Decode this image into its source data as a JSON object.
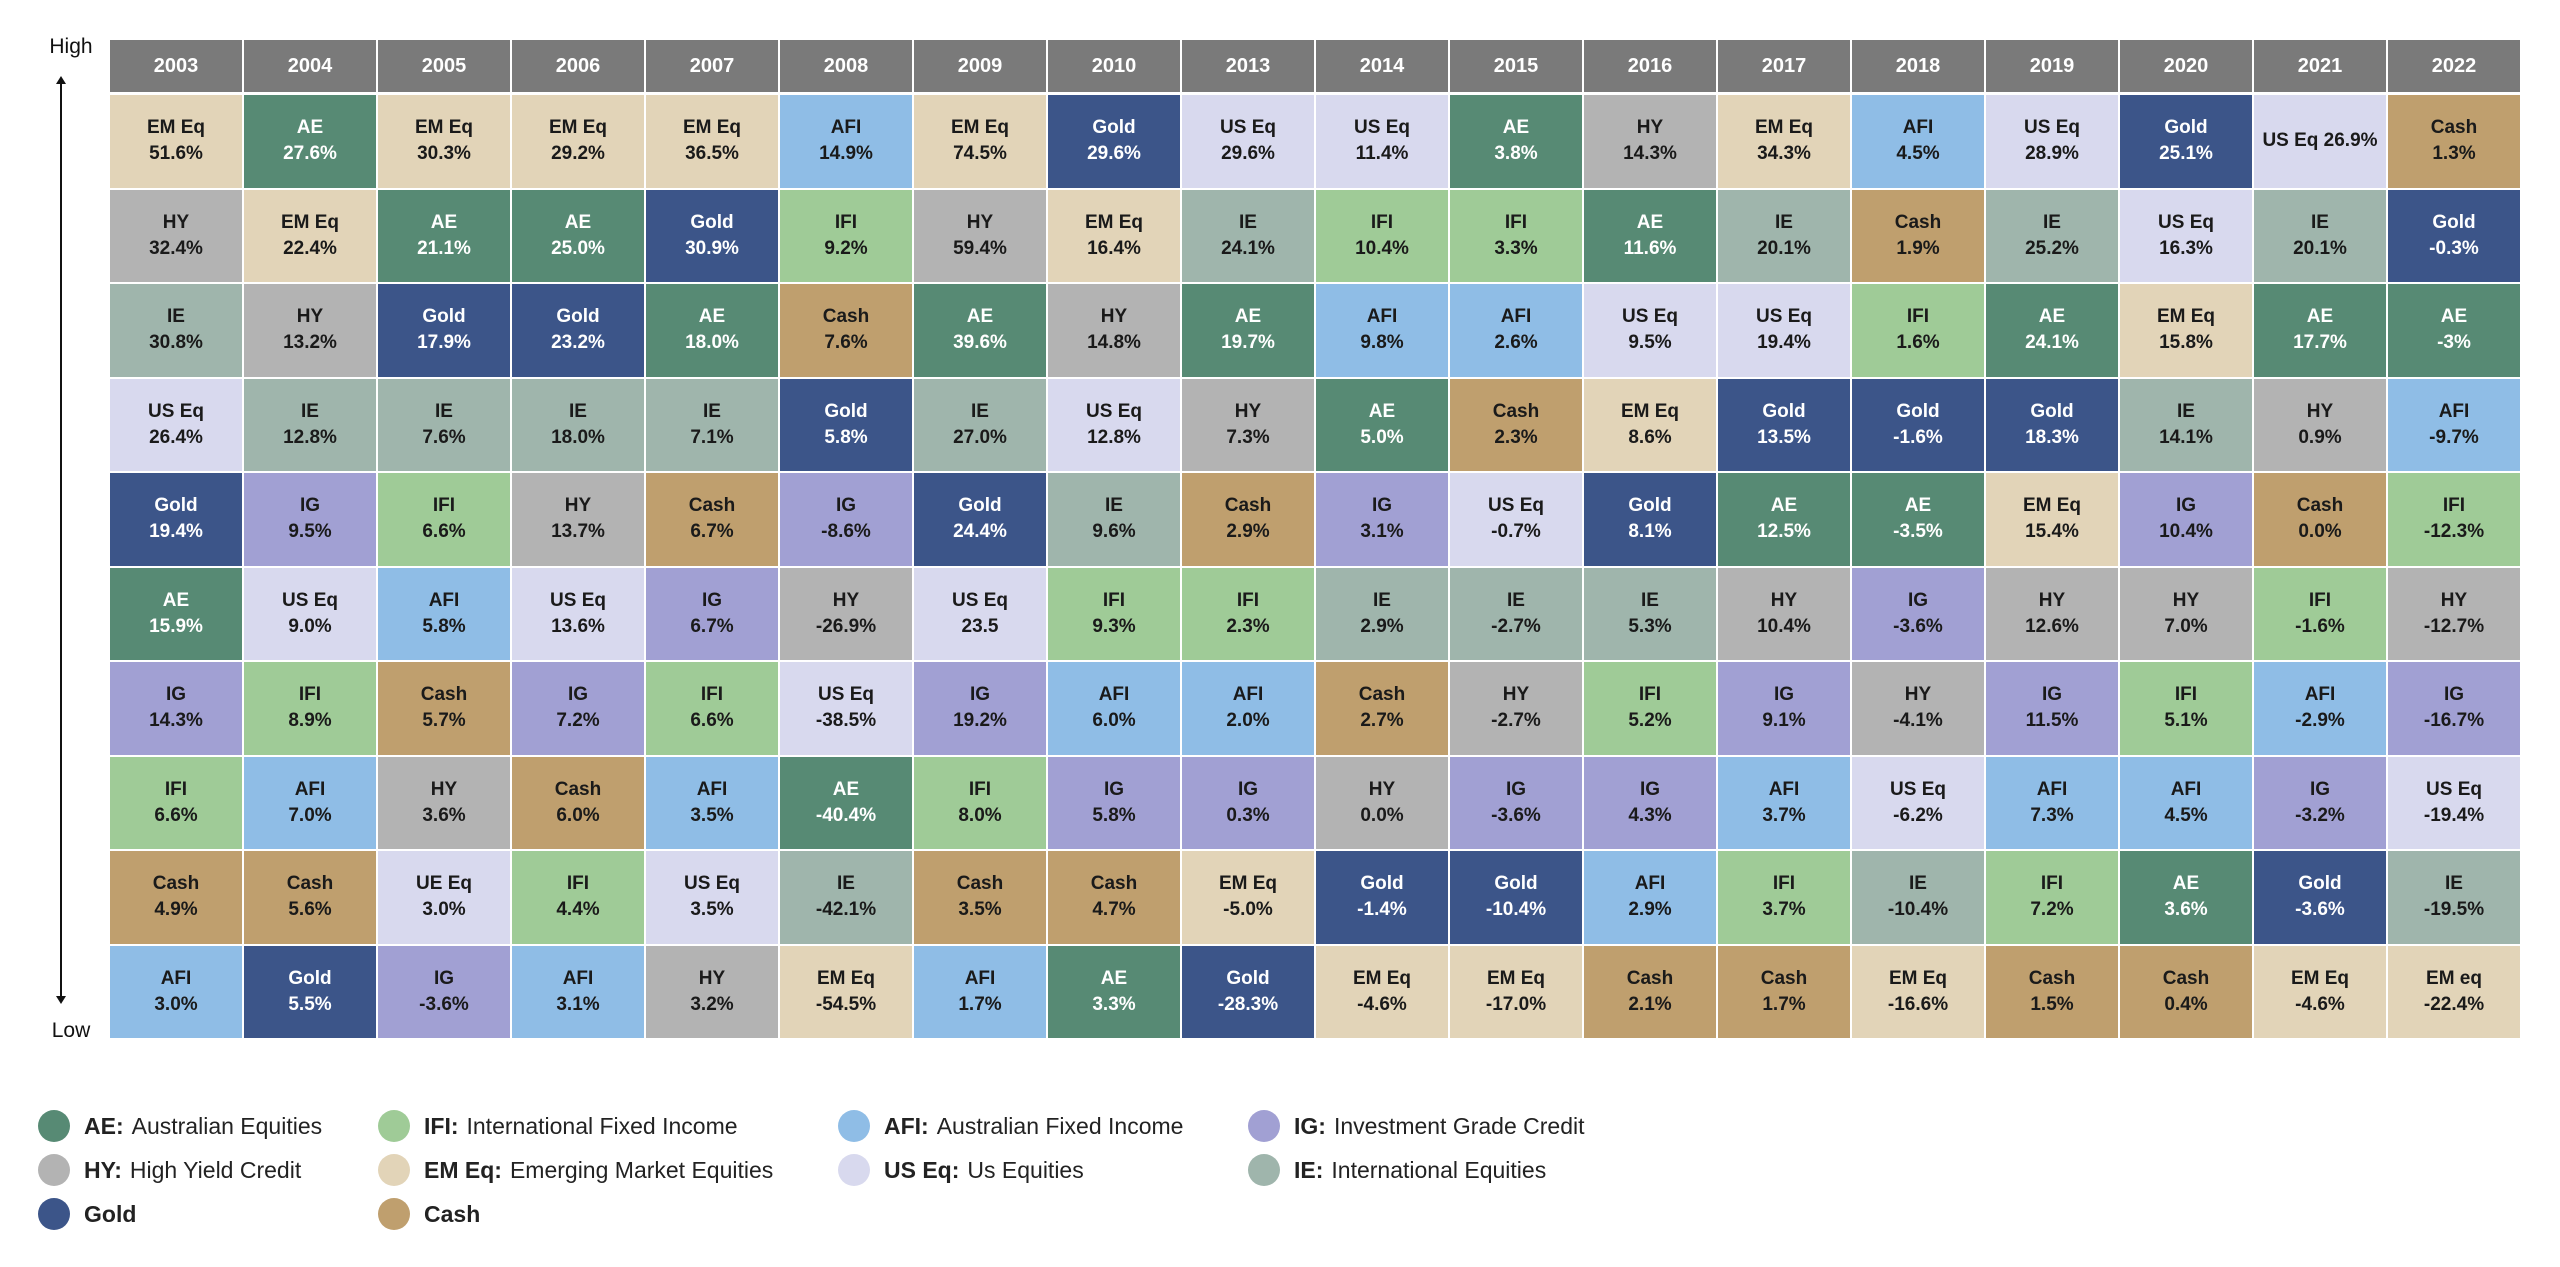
{
  "axis": {
    "high_label": "High",
    "low_label": "Low"
  },
  "colors": {
    "AE": "#578a74",
    "IFI": "#9fcb97",
    "AFI": "#8fbde6",
    "IG": "#a1a0d3",
    "HY": "#b3b3b3",
    "EM Eq": "#e2d4b8",
    "US Eq": "#d8d9ee",
    "IE": "#9fb5ac",
    "Gold": "#3c5589",
    "Cash": "#bf9f6e",
    "header": "#7a7a7a"
  },
  "legend": [
    {
      "key": "AE",
      "abbr": "AE:",
      "label": "Australian Equities"
    },
    {
      "key": "IFI",
      "abbr": "IFI:",
      "label": "International Fixed Income"
    },
    {
      "key": "AFI",
      "abbr": "AFI:",
      "label": "Australian Fixed Income"
    },
    {
      "key": "IG",
      "abbr": "IG:",
      "label": "Investment Grade Credit"
    },
    {
      "key": "HY",
      "abbr": "HY:",
      "label": "High Yield Credit"
    },
    {
      "key": "EM Eq",
      "abbr": "EM Eq:",
      "label": "Emerging Market Equities"
    },
    {
      "key": "US Eq",
      "abbr": "US Eq:",
      "label": "Us Equities"
    },
    {
      "key": "IE",
      "abbr": "IE:",
      "label": "International Equities"
    },
    {
      "key": "Gold",
      "abbr": "Gold",
      "label": ""
    },
    {
      "key": "Cash",
      "abbr": "Cash",
      "label": ""
    }
  ],
  "chart_data": {
    "type": "table",
    "title": "",
    "years": [
      "2003",
      "2004",
      "2005",
      "2006",
      "2007",
      "2008",
      "2009",
      "2010",
      "2013",
      "2014",
      "2015",
      "2016",
      "2017",
      "2018",
      "2019",
      "2020",
      "2021",
      "2022"
    ],
    "columns": [
      [
        [
          "EM Eq",
          "EM Eq",
          "51.6%"
        ],
        [
          "HY",
          "HY",
          "32.4%"
        ],
        [
          "IE",
          "IE",
          "30.8%"
        ],
        [
          "US Eq",
          "US Eq",
          "26.4%"
        ],
        [
          "Gold",
          "Gold",
          "19.4%"
        ],
        [
          "AE",
          "AE",
          "15.9%"
        ],
        [
          "IG",
          "IG",
          "14.3%"
        ],
        [
          "IFI",
          "IFI",
          "6.6%"
        ],
        [
          "Cash",
          "Cash",
          "4.9%"
        ],
        [
          "AFI",
          "AFI",
          "3.0%"
        ]
      ],
      [
        [
          "AE",
          "AE",
          "27.6%"
        ],
        [
          "EM Eq",
          "EM Eq",
          "22.4%"
        ],
        [
          "HY",
          "HY",
          "13.2%"
        ],
        [
          "IE",
          "IE",
          "12.8%"
        ],
        [
          "IG",
          "IG",
          "9.5%"
        ],
        [
          "US Eq",
          "US Eq",
          "9.0%"
        ],
        [
          "IFI",
          "IFI",
          "8.9%"
        ],
        [
          "AFI",
          "AFI",
          "7.0%"
        ],
        [
          "Cash",
          "Cash",
          "5.6%"
        ],
        [
          "Gold",
          "Gold",
          "5.5%"
        ]
      ],
      [
        [
          "EM Eq",
          "EM Eq",
          "30.3%"
        ],
        [
          "AE",
          "AE",
          "21.1%"
        ],
        [
          "Gold",
          "Gold",
          "17.9%"
        ],
        [
          "IE",
          "IE",
          "7.6%"
        ],
        [
          "IFI",
          "IFI",
          "6.6%"
        ],
        [
          "AFI",
          "AFI",
          "5.8%"
        ],
        [
          "Cash",
          "Cash",
          "5.7%"
        ],
        [
          "HY",
          "HY",
          "3.6%"
        ],
        [
          "US Eq",
          "UE Eq",
          "3.0%"
        ],
        [
          "IG",
          "IG",
          "-3.6%"
        ]
      ],
      [
        [
          "EM Eq",
          "EM Eq",
          "29.2%"
        ],
        [
          "AE",
          "AE",
          "25.0%"
        ],
        [
          "Gold",
          "Gold",
          "23.2%"
        ],
        [
          "IE",
          "IE",
          "18.0%"
        ],
        [
          "HY",
          "HY",
          "13.7%"
        ],
        [
          "US Eq",
          "US Eq",
          "13.6%"
        ],
        [
          "IG",
          "IG",
          "7.2%"
        ],
        [
          "Cash",
          "Cash",
          "6.0%"
        ],
        [
          "IFI",
          "IFI",
          "4.4%"
        ],
        [
          "AFI",
          "AFI",
          "3.1%"
        ]
      ],
      [
        [
          "EM Eq",
          "EM Eq",
          "36.5%"
        ],
        [
          "Gold",
          "Gold",
          "30.9%"
        ],
        [
          "AE",
          "AE",
          "18.0%"
        ],
        [
          "IE",
          "IE",
          "7.1%"
        ],
        [
          "Cash",
          "Cash",
          "6.7%"
        ],
        [
          "IG",
          "IG",
          "6.7%"
        ],
        [
          "IFI",
          "IFI",
          "6.6%"
        ],
        [
          "AFI",
          "AFI",
          "3.5%"
        ],
        [
          "US Eq",
          "US Eq",
          "3.5%"
        ],
        [
          "HY",
          "HY",
          "3.2%"
        ]
      ],
      [
        [
          "AFI",
          "AFI",
          "14.9%"
        ],
        [
          "IFI",
          "IFI",
          "9.2%"
        ],
        [
          "Cash",
          "Cash",
          "7.6%"
        ],
        [
          "Gold",
          "Gold",
          "5.8%"
        ],
        [
          "IG",
          "IG",
          "-8.6%"
        ],
        [
          "HY",
          "HY",
          "-26.9%"
        ],
        [
          "US Eq",
          "US Eq",
          "-38.5%"
        ],
        [
          "AE",
          "AE",
          "-40.4%"
        ],
        [
          "IE",
          "IE",
          "-42.1%"
        ],
        [
          "EM Eq",
          "EM Eq",
          "-54.5%"
        ]
      ],
      [
        [
          "EM Eq",
          "EM Eq",
          "74.5%"
        ],
        [
          "HY",
          "HY",
          "59.4%"
        ],
        [
          "AE",
          "AE",
          "39.6%"
        ],
        [
          "IE",
          "IE",
          "27.0%"
        ],
        [
          "Gold",
          "Gold",
          "24.4%"
        ],
        [
          "US Eq",
          "US Eq",
          "23.5"
        ],
        [
          "IG",
          "IG",
          "19.2%"
        ],
        [
          "IFI",
          "IFI",
          "8.0%"
        ],
        [
          "Cash",
          "Cash",
          "3.5%"
        ],
        [
          "AFI",
          "AFI",
          "1.7%"
        ]
      ],
      [
        [
          "Gold",
          "Gold",
          "29.6%"
        ],
        [
          "EM Eq",
          "EM Eq",
          "16.4%"
        ],
        [
          "HY",
          "HY",
          "14.8%"
        ],
        [
          "US Eq",
          "US Eq",
          "12.8%"
        ],
        [
          "IE",
          "IE",
          "9.6%"
        ],
        [
          "IFI",
          "IFI",
          "9.3%"
        ],
        [
          "AFI",
          "AFI",
          "6.0%"
        ],
        [
          "IG",
          "IG",
          "5.8%"
        ],
        [
          "Cash",
          "Cash",
          "4.7%"
        ],
        [
          "AE",
          "AE",
          "3.3%"
        ]
      ],
      [
        [
          "US Eq",
          "US Eq",
          "29.6%"
        ],
        [
          "IE",
          "IE",
          "24.1%"
        ],
        [
          "AE",
          "AE",
          "19.7%"
        ],
        [
          "HY",
          "HY",
          "7.3%"
        ],
        [
          "Cash",
          "Cash",
          "2.9%"
        ],
        [
          "IFI",
          "IFI",
          "2.3%"
        ],
        [
          "AFI",
          "AFI",
          "2.0%"
        ],
        [
          "IG",
          "IG",
          "0.3%"
        ],
        [
          "EM Eq",
          "EM Eq",
          "-5.0%"
        ],
        [
          "Gold",
          "Gold",
          "-28.3%"
        ]
      ],
      [
        [
          "US Eq",
          "US Eq",
          "11.4%"
        ],
        [
          "IFI",
          "IFI",
          "10.4%"
        ],
        [
          "AFI",
          "AFI",
          "9.8%"
        ],
        [
          "AE",
          "AE",
          "5.0%"
        ],
        [
          "IG",
          "IG",
          "3.1%"
        ],
        [
          "IE",
          "IE",
          "2.9%"
        ],
        [
          "Cash",
          "Cash",
          "2.7%"
        ],
        [
          "HY",
          "HY",
          "0.0%"
        ],
        [
          "Gold",
          "Gold",
          "-1.4%"
        ],
        [
          "EM Eq",
          "EM Eq",
          "-4.6%"
        ]
      ],
      [
        [
          "AE",
          "AE",
          "3.8%"
        ],
        [
          "IFI",
          "IFI",
          "3.3%"
        ],
        [
          "AFI",
          "AFI",
          "2.6%"
        ],
        [
          "Cash",
          "Cash",
          "2.3%"
        ],
        [
          "US Eq",
          "US Eq",
          "-0.7%"
        ],
        [
          "IE",
          "IE",
          "-2.7%"
        ],
        [
          "HY",
          "HY",
          "-2.7%"
        ],
        [
          "IG",
          "IG",
          "-3.6%"
        ],
        [
          "Gold",
          "Gold",
          "-10.4%"
        ],
        [
          "EM Eq",
          "EM Eq",
          "-17.0%"
        ]
      ],
      [
        [
          "HY",
          "HY",
          "14.3%"
        ],
        [
          "AE",
          "AE",
          "11.6%"
        ],
        [
          "US Eq",
          "US Eq",
          "9.5%"
        ],
        [
          "EM Eq",
          "EM Eq",
          "8.6%"
        ],
        [
          "Gold",
          "Gold",
          "8.1%"
        ],
        [
          "IE",
          "IE",
          "5.3%"
        ],
        [
          "IFI",
          "IFI",
          "5.2%"
        ],
        [
          "IG",
          "IG",
          "4.3%"
        ],
        [
          "AFI",
          "AFI",
          "2.9%"
        ],
        [
          "Cash",
          "Cash",
          "2.1%"
        ]
      ],
      [
        [
          "EM Eq",
          "EM Eq",
          "34.3%"
        ],
        [
          "IE",
          "IE",
          "20.1%"
        ],
        [
          "US Eq",
          "US Eq",
          "19.4%"
        ],
        [
          "Gold",
          "Gold",
          "13.5%"
        ],
        [
          "AE",
          "AE",
          "12.5%"
        ],
        [
          "HY",
          "HY",
          "10.4%"
        ],
        [
          "IG",
          "IG",
          "9.1%"
        ],
        [
          "AFI",
          "AFI",
          "3.7%"
        ],
        [
          "IFI",
          "IFI",
          "3.7%"
        ],
        [
          "Cash",
          "Cash",
          "1.7%"
        ]
      ],
      [
        [
          "AFI",
          "AFI",
          "4.5%"
        ],
        [
          "Cash",
          "Cash",
          "1.9%"
        ],
        [
          "IFI",
          "IFI",
          "1.6%"
        ],
        [
          "Gold",
          "Gold",
          "-1.6%"
        ],
        [
          "AE",
          "AE",
          "-3.5%"
        ],
        [
          "IG",
          "IG",
          "-3.6%"
        ],
        [
          "HY",
          "HY",
          "-4.1%"
        ],
        [
          "US Eq",
          "US Eq",
          "-6.2%"
        ],
        [
          "IE",
          "IE",
          "-10.4%"
        ],
        [
          "EM Eq",
          "EM Eq",
          "-16.6%"
        ]
      ],
      [
        [
          "US Eq",
          "US Eq",
          "28.9%"
        ],
        [
          "IE",
          "IE",
          "25.2%"
        ],
        [
          "AE",
          "AE",
          "24.1%"
        ],
        [
          "Gold",
          "Gold",
          "18.3%"
        ],
        [
          "EM Eq",
          "EM Eq",
          "15.4%"
        ],
        [
          "HY",
          "HY",
          "12.6%"
        ],
        [
          "IG",
          "IG",
          "11.5%"
        ],
        [
          "AFI",
          "AFI",
          "7.3%"
        ],
        [
          "IFI",
          "IFI",
          "7.2%"
        ],
        [
          "Cash",
          "Cash",
          "1.5%"
        ]
      ],
      [
        [
          "Gold",
          "Gold",
          "25.1%"
        ],
        [
          "US Eq",
          "US Eq",
          "16.3%"
        ],
        [
          "EM Eq",
          "EM Eq",
          "15.8%"
        ],
        [
          "IE",
          "IE",
          "14.1%"
        ],
        [
          "IG",
          "IG",
          "10.4%"
        ],
        [
          "HY",
          "HY",
          "7.0%"
        ],
        [
          "IFI",
          "IFI",
          "5.1%"
        ],
        [
          "AFI",
          "AFI",
          "4.5%"
        ],
        [
          "AE",
          "AE",
          "3.6%"
        ],
        [
          "Cash",
          "Cash",
          "0.4%"
        ]
      ],
      [
        [
          "US Eq",
          "US Eq 26.9%",
          ""
        ],
        [
          "IE",
          "IE",
          "20.1%"
        ],
        [
          "AE",
          "AE",
          "17.7%"
        ],
        [
          "HY",
          "HY",
          "0.9%"
        ],
        [
          "Cash",
          "Cash",
          "0.0%"
        ],
        [
          "IFI",
          "IFI",
          "-1.6%"
        ],
        [
          "AFI",
          "AFI",
          "-2.9%"
        ],
        [
          "IG",
          "IG",
          "-3.2%"
        ],
        [
          "Gold",
          "Gold",
          "-3.6%"
        ],
        [
          "EM Eq",
          "EM Eq",
          "-4.6%"
        ]
      ],
      [
        [
          "Cash",
          "Cash",
          "1.3%"
        ],
        [
          "Gold",
          "Gold",
          "-0.3%"
        ],
        [
          "AE",
          "AE",
          "-3%"
        ],
        [
          "AFI",
          "AFI",
          "-9.7%"
        ],
        [
          "IFI",
          "IFI",
          "-12.3%"
        ],
        [
          "HY",
          "HY",
          "-12.7%"
        ],
        [
          "IG",
          "IG",
          "-16.7%"
        ],
        [
          "US Eq",
          "US Eq",
          "-19.4%"
        ],
        [
          "IE",
          "IE",
          "-19.5%"
        ],
        [
          "EM Eq",
          "EM eq",
          "-22.4%"
        ]
      ]
    ]
  }
}
